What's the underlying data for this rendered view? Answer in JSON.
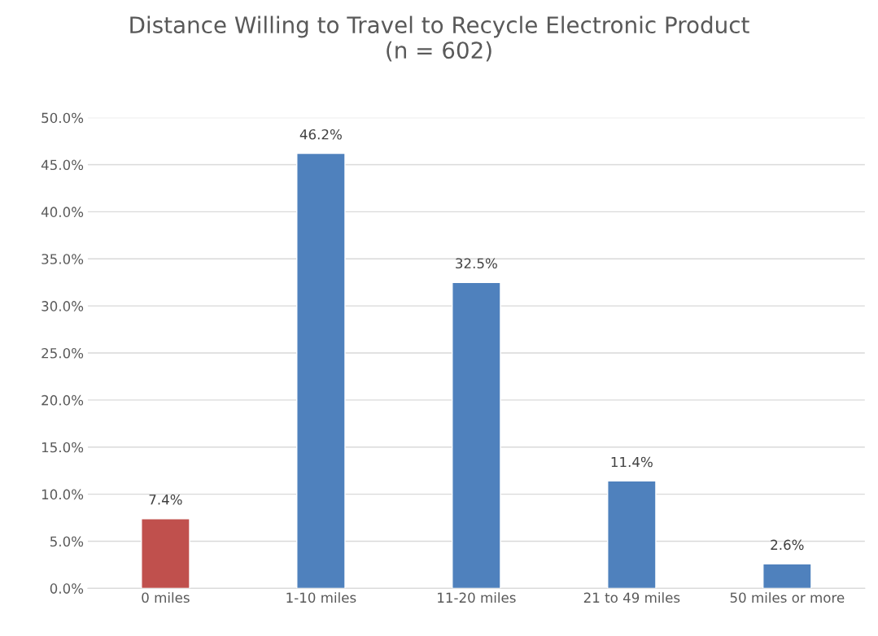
{
  "chart_data": {
    "type": "bar",
    "title": "Distance Willing to Travel to Recycle Electronic Product\n(n = 602)",
    "categories": [
      "0 miles",
      "1-10 miles",
      "11-20 miles",
      "21 to 49 miles",
      "50 miles or more"
    ],
    "values": [
      7.4,
      46.2,
      32.5,
      11.4,
      2.6
    ],
    "colors": [
      "#c0504d",
      "#4f81bd",
      "#4f81bd",
      "#4f81bd",
      "#4f81bd"
    ],
    "value_labels": [
      "7.4%",
      "46.2%",
      "32.5%",
      "11.4%",
      "2.6%"
    ],
    "ylim": [
      0,
      50
    ],
    "yticks": [
      {
        "value": 0,
        "label": "0.0%"
      },
      {
        "value": 5,
        "label": "5.0%"
      },
      {
        "value": 10,
        "label": "10.0%"
      },
      {
        "value": 15,
        "label": "15.0%"
      },
      {
        "value": 20,
        "label": "20.0%"
      },
      {
        "value": 25,
        "label": "25.0%"
      },
      {
        "value": 30,
        "label": "30.0%"
      },
      {
        "value": 35,
        "label": "35.0%"
      },
      {
        "value": 40,
        "label": "40.0%"
      },
      {
        "value": 45,
        "label": "45.0%"
      },
      {
        "value": 50,
        "label": "50.0%"
      }
    ],
    "grid": "y",
    "legend": false
  }
}
